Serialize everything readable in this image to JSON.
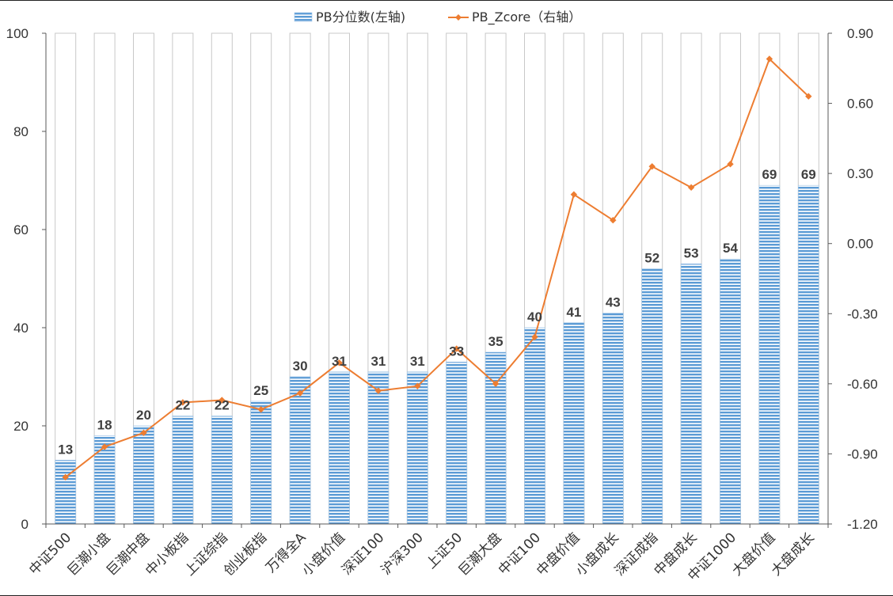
{
  "chart_data": {
    "type": "bar",
    "categories": [
      "中证500",
      "巨潮小盘",
      "巨潮中盘",
      "中小板指",
      "上证综指",
      "创业板指",
      "万得全A",
      "小盘价值",
      "深证100",
      "沪深300",
      "上证50",
      "巨潮大盘",
      "中证100",
      "中盘价值",
      "小盘成长",
      "深证成指",
      "中盘成长",
      "中证1000",
      "大盘价值",
      "大盘成长"
    ],
    "series": [
      {
        "name": "PB分位数(左轴)",
        "chart": "bar",
        "axis": "left",
        "values": [
          13,
          18,
          20,
          22,
          22,
          25,
          30,
          31,
          31,
          31,
          33,
          35,
          40,
          41,
          43,
          52,
          53,
          54,
          69,
          69
        ],
        "labels": [
          "13",
          "18",
          "20",
          "22",
          "22",
          "25",
          "30",
          "31",
          "31",
          "31",
          "33",
          "35",
          "40",
          "41",
          "43",
          "52",
          "53",
          "54",
          "69",
          "69"
        ],
        "color": "#5b9bd5"
      },
      {
        "name": "PB_Zcore（右轴）",
        "chart": "line",
        "axis": "right",
        "values": [
          -1.0,
          -0.87,
          -0.81,
          -0.68,
          -0.67,
          -0.71,
          -0.64,
          -0.51,
          -0.63,
          -0.61,
          -0.45,
          -0.6,
          -0.4,
          0.21,
          0.1,
          0.33,
          0.24,
          0.34,
          0.79,
          0.63
        ],
        "color": "#ed7d31"
      }
    ],
    "left_axis": {
      "ylim": [
        0,
        100
      ],
      "ticks": [
        "0",
        "20",
        "40",
        "60",
        "80",
        "100"
      ],
      "tick_values": [
        0,
        20,
        40,
        60,
        80,
        100
      ]
    },
    "right_axis": {
      "ylim": [
        -1.2,
        0.9
      ],
      "ticks": [
        "-1.20",
        "-0.90",
        "-0.60",
        "-0.30",
        "0.00",
        "0.30",
        "0.60",
        "0.90"
      ],
      "tick_values": [
        -1.2,
        -0.9,
        -0.6,
        -0.3,
        0,
        0.3,
        0.6,
        0.9
      ]
    },
    "bar_background_max": 100,
    "legend_position": "top-center",
    "grid": false
  }
}
